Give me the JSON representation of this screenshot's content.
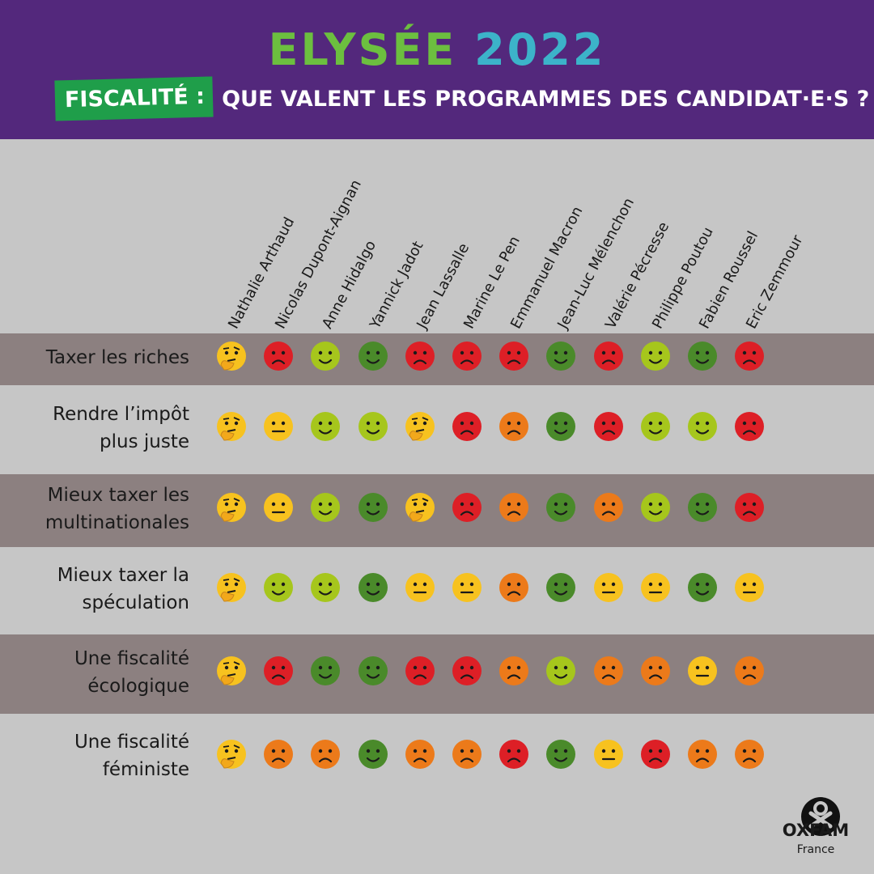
{
  "header": {
    "title_word1": "ELYSÉE",
    "title_word2": "2022",
    "subtitle_tag": "FISCALITÉ :",
    "subtitle_text": "QUE VALENT LES PROGRAMMES DES CANDIDAT·E·S ?"
  },
  "candidates": [
    "Nathalie Arthaud",
    "Nicolas Dupont-Aignan",
    "Anne Hidalgo",
    "Yannick Jadot",
    "Jean Lassalle",
    "Marine Le Pen",
    "Emmanuel Macron",
    "Jean-Luc Mélenchon",
    "Valérie Pécresse",
    "Philippe Poutou",
    "Fabien Roussel",
    "Eric Zemmour"
  ],
  "colors": {
    "header_bg": "#53287c",
    "tag_bg": "#1f9e4a",
    "row_dark": "#8c8080",
    "row_light": "#c6c6c6",
    "very_good": "#4a8a2a",
    "good": "#a6c61c",
    "neutral": "#f7c21f",
    "bad": "#ec7a1a",
    "very_bad": "#dd1f26",
    "thinking": "#f7c21f"
  },
  "criteria": [
    {
      "label_line1": "Taxer les riches",
      "label_line2": "",
      "ratings": [
        "thinking",
        "very_bad",
        "good",
        "very_good",
        "very_bad",
        "very_bad",
        "very_bad",
        "very_good",
        "very_bad",
        "good",
        "very_good",
        "very_bad"
      ]
    },
    {
      "label_line1": "Rendre l’impôt",
      "label_line2": "plus juste",
      "ratings": [
        "thinking",
        "neutral",
        "good",
        "good",
        "thinking",
        "very_bad",
        "bad",
        "very_good",
        "very_bad",
        "good",
        "good",
        "very_bad"
      ]
    },
    {
      "label_line1": "Mieux taxer les",
      "label_line2": "multinationales",
      "ratings": [
        "thinking",
        "neutral",
        "good",
        "very_good",
        "thinking",
        "very_bad",
        "bad",
        "very_good",
        "bad",
        "good",
        "very_good",
        "very_bad"
      ]
    },
    {
      "label_line1": "Mieux taxer la",
      "label_line2": "spéculation",
      "ratings": [
        "thinking",
        "good",
        "good",
        "very_good",
        "neutral",
        "neutral",
        "bad",
        "very_good",
        "neutral",
        "neutral",
        "very_good",
        "neutral"
      ]
    },
    {
      "label_line1": "Une fiscalité",
      "label_line2": "écologique",
      "ratings": [
        "thinking",
        "very_bad",
        "very_good",
        "very_good",
        "very_bad",
        "very_bad",
        "bad",
        "good",
        "bad",
        "bad",
        "neutral",
        "bad"
      ]
    },
    {
      "label_line1": "Une fiscalité",
      "label_line2": "féministe",
      "ratings": [
        "thinking",
        "bad",
        "bad",
        "very_good",
        "bad",
        "bad",
        "very_bad",
        "very_good",
        "neutral",
        "very_bad",
        "bad",
        "bad"
      ]
    }
  ],
  "logo": {
    "name": "OXFAM",
    "country": "France",
    "icon": "oxfam-logo-icon"
  }
}
